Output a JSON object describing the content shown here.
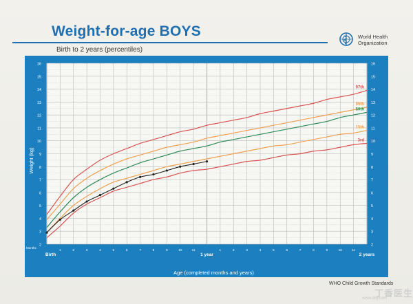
{
  "header": {
    "title": "Weight-for-age BOYS",
    "subtitle": "Birth to 2 years (percentiles)",
    "org_line1": "World Health",
    "org_line2": "Organization",
    "logo_icon": "who-emblem-icon"
  },
  "footer": {
    "source": "WHO Child Growth Standards",
    "watermark": "丁香医生",
    "watermark_url": "www.dxy.com"
  },
  "colors": {
    "frame": "#1c7fbf",
    "plot_bg": "#f7f7f4",
    "grid": "#b9b9b9",
    "p97": "#d9534f",
    "p85": "#f0a050",
    "p50": "#2e8b57",
    "p15": "#f0a050",
    "p3": "#d9534f",
    "measured": "#222222",
    "title": "#1e6fb1"
  },
  "chart_data": {
    "type": "line",
    "title": "Weight-for-age BOYS",
    "subtitle": "Birth to 2 years (percentiles)",
    "xlabel": "Age (completed months and years)",
    "ylabel": "Weight (kg)",
    "xlim": [
      0,
      24
    ],
    "ylim": [
      2,
      16
    ],
    "grid": true,
    "x_tick_prefix": "Months",
    "x_ticks": [
      {
        "x": 0,
        "label": "Birth"
      },
      {
        "x": 1,
        "label": "1"
      },
      {
        "x": 2,
        "label": "2"
      },
      {
        "x": 3,
        "label": "3"
      },
      {
        "x": 4,
        "label": "4"
      },
      {
        "x": 5,
        "label": "5"
      },
      {
        "x": 6,
        "label": "6"
      },
      {
        "x": 7,
        "label": "7"
      },
      {
        "x": 8,
        "label": "8"
      },
      {
        "x": 9,
        "label": "9"
      },
      {
        "x": 10,
        "label": "10"
      },
      {
        "x": 11,
        "label": "11"
      },
      {
        "x": 12,
        "label": "1 year"
      },
      {
        "x": 13,
        "label": "1"
      },
      {
        "x": 14,
        "label": "2"
      },
      {
        "x": 15,
        "label": "3"
      },
      {
        "x": 16,
        "label": "4"
      },
      {
        "x": 17,
        "label": "5"
      },
      {
        "x": 18,
        "label": "6"
      },
      {
        "x": 19,
        "label": "7"
      },
      {
        "x": 20,
        "label": "8"
      },
      {
        "x": 21,
        "label": "9"
      },
      {
        "x": 22,
        "label": "10"
      },
      {
        "x": 23,
        "label": "11"
      },
      {
        "x": 24,
        "label": "2 years"
      }
    ],
    "y_ticks": [
      2,
      3,
      4,
      5,
      6,
      7,
      8,
      9,
      10,
      11,
      12,
      13,
      14,
      15,
      16
    ],
    "x": [
      0,
      1,
      2,
      3,
      4,
      5,
      6,
      7,
      8,
      9,
      10,
      11,
      12,
      13,
      14,
      15,
      16,
      17,
      18,
      19,
      20,
      21,
      22,
      23,
      24
    ],
    "series": [
      {
        "name": "97th",
        "color_key": "p97",
        "values": [
          4.3,
          5.7,
          7.0,
          7.8,
          8.5,
          9.0,
          9.4,
          9.8,
          10.1,
          10.4,
          10.7,
          10.9,
          11.2,
          11.4,
          11.6,
          11.8,
          12.1,
          12.3,
          12.5,
          12.7,
          12.9,
          13.2,
          13.4,
          13.6,
          13.9
        ]
      },
      {
        "name": "85th",
        "color_key": "p85",
        "values": [
          3.9,
          5.1,
          6.3,
          7.1,
          7.7,
          8.2,
          8.6,
          8.9,
          9.2,
          9.5,
          9.7,
          9.9,
          10.2,
          10.4,
          10.6,
          10.8,
          11.0,
          11.2,
          11.4,
          11.6,
          11.8,
          12.0,
          12.2,
          12.4,
          12.6
        ]
      },
      {
        "name": "50th",
        "color_key": "p50",
        "values": [
          3.3,
          4.5,
          5.6,
          6.4,
          7.0,
          7.5,
          7.9,
          8.3,
          8.6,
          8.9,
          9.2,
          9.4,
          9.6,
          9.9,
          10.1,
          10.3,
          10.5,
          10.7,
          10.9,
          11.1,
          11.3,
          11.5,
          11.8,
          12.0,
          12.2
        ]
      },
      {
        "name": "15th",
        "color_key": "p15",
        "values": [
          2.9,
          4.0,
          5.0,
          5.7,
          6.3,
          6.8,
          7.1,
          7.4,
          7.7,
          8.0,
          8.2,
          8.4,
          8.6,
          8.8,
          9.0,
          9.2,
          9.4,
          9.6,
          9.7,
          9.9,
          10.1,
          10.3,
          10.5,
          10.6,
          10.8
        ]
      },
      {
        "name": "3rd",
        "color_key": "p3",
        "values": [
          2.5,
          3.4,
          4.4,
          5.1,
          5.6,
          6.1,
          6.4,
          6.7,
          7.0,
          7.2,
          7.5,
          7.7,
          7.8,
          8.0,
          8.2,
          8.4,
          8.5,
          8.7,
          8.9,
          9.0,
          9.2,
          9.3,
          9.5,
          9.7,
          9.8
        ]
      },
      {
        "name": "",
        "color_key": "measured",
        "markers": true,
        "x": [
          0,
          1,
          2,
          3,
          4,
          5,
          6,
          7,
          8,
          9,
          10,
          11,
          12
        ],
        "values": [
          2.9,
          3.9,
          4.6,
          5.3,
          5.8,
          6.3,
          6.8,
          7.2,
          7.4,
          7.7,
          8.0,
          8.2,
          8.4
        ]
      }
    ]
  }
}
